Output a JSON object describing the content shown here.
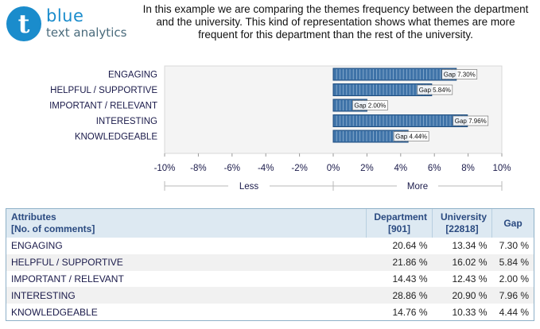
{
  "logo": {
    "mark": "t",
    "word1": "blue",
    "word2": "text analytics"
  },
  "intro": "In this example we are comparing the themes frequency between the department and the university. This kind of representation shows what themes are more frequent for this department than the rest of the university.",
  "colors": {
    "bar": "#3f73a8",
    "bar_edge": "#1e4d7f",
    "plot_bg": "#f4f4f4",
    "header_bg": "#dde9f2"
  },
  "chart_data": {
    "type": "bar",
    "orientation": "horizontal",
    "categories": [
      "ENGAGING",
      "HELPFUL / SUPPORTIVE",
      "IMPORTANT / RELEVANT",
      "INTERESTING",
      "KNOWLEDGEABLE"
    ],
    "values": [
      7.3,
      5.84,
      2.0,
      7.96,
      4.44
    ],
    "bar_labels": [
      "Gap 7.30%",
      "Gap 5.84%",
      "Gap 2.00%",
      "Gap 7.96%",
      "Gap 4.44%"
    ],
    "xlim": [
      -10,
      10
    ],
    "xticks": [
      -10,
      -8,
      -6,
      -4,
      -2,
      0,
      2,
      4,
      6,
      8,
      10
    ],
    "xtick_labels": [
      "-10%",
      "-8%",
      "-6%",
      "-4%",
      "-2%",
      "0%",
      "2%",
      "4%",
      "6%",
      "8%",
      "10%"
    ],
    "side_labels": {
      "left": "Less",
      "right": "More"
    },
    "grid": false
  },
  "table": {
    "headers": {
      "attr_1": "Attributes",
      "attr_2": "[No. of comments]",
      "dept_1": "Department",
      "dept_2": "[901]",
      "univ_1": "University",
      "univ_2": "[22818]",
      "gap": "Gap"
    },
    "rows": [
      {
        "attribute": "ENGAGING",
        "department": "20.64 %",
        "university": "13.34 %",
        "gap": "7.30 %"
      },
      {
        "attribute": "HELPFUL / SUPPORTIVE",
        "department": "21.86 %",
        "university": "16.02 %",
        "gap": "5.84 %"
      },
      {
        "attribute": "IMPORTANT / RELEVANT",
        "department": "14.43 %",
        "university": "12.43 %",
        "gap": "2.00 %"
      },
      {
        "attribute": "INTERESTING",
        "department": "28.86 %",
        "university": "20.90 %",
        "gap": "7.96 %"
      },
      {
        "attribute": "KNOWLEDGEABLE",
        "department": "14.76 %",
        "university": "10.33 %",
        "gap": "4.44 %"
      }
    ]
  }
}
